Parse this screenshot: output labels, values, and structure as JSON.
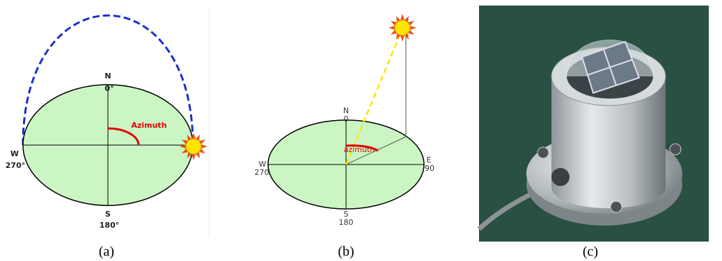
{
  "panels": [
    {
      "caption": "(a)",
      "north": "N",
      "north_deg": "0°",
      "west": "W",
      "west_deg": "270°",
      "south": "S",
      "south_deg": "180°",
      "angle_label": "Azimuth"
    },
    {
      "caption": "(b)",
      "north": "N",
      "north_deg": "0",
      "west": "W",
      "west_deg": "270",
      "east": "E",
      "east_deg": "90",
      "south": "S",
      "south_deg": "180",
      "angle_label": "azimuth"
    },
    {
      "caption": "(c)"
    }
  ]
}
